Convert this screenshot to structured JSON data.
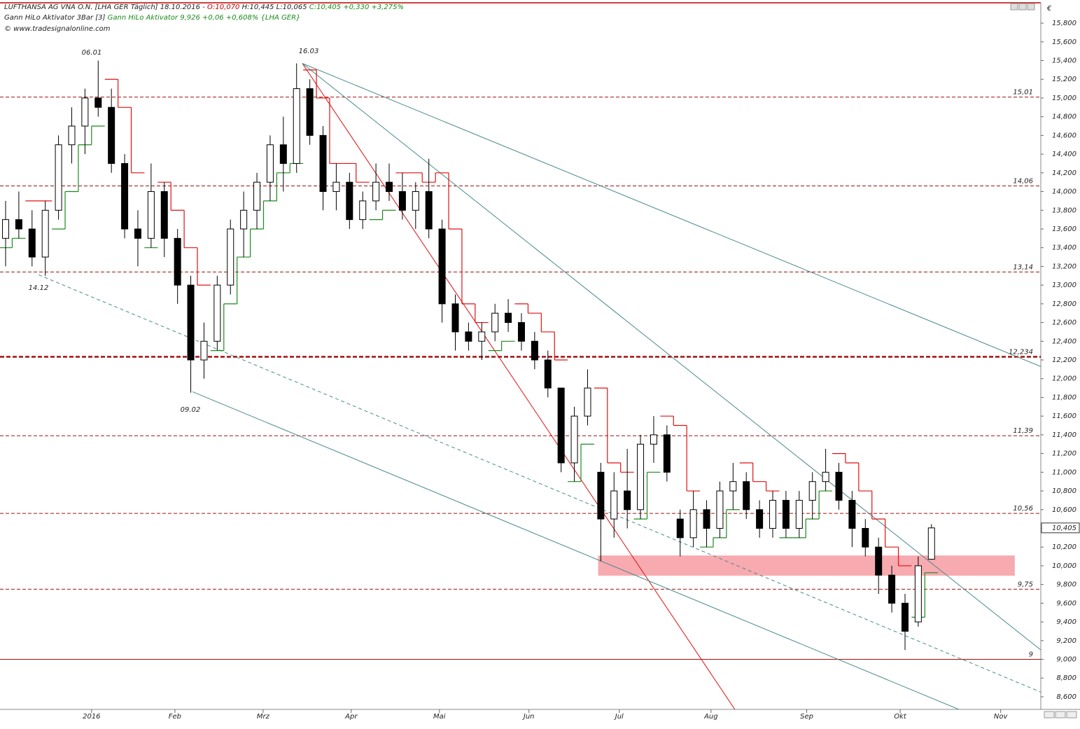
{
  "chart_data": {
    "type": "candlestick",
    "title": "LUFTHANSA AG VNA O.N. [LHA GER  Täglich] 18.10.2016 -",
    "open_text": "O:10,070",
    "hl_text": "H:10,445 L:10,065",
    "change_text": "C:10,405 +0,330 +3,275%",
    "indicator1": "Gann HiLo Aktivator 3Bar [3]",
    "indicator2": "Gann HiLo Aktivator 9,926 +0,06 +0,608% {LHA GER}",
    "copyright": "© www.tradesignalonline.com",
    "unit": "€",
    "x": [
      0,
      3,
      6,
      9,
      12,
      15,
      18,
      21,
      24,
      27,
      30,
      33,
      36,
      39,
      42,
      45,
      48,
      51,
      54,
      57,
      60,
      63,
      66,
      69,
      72,
      75,
      78,
      81,
      84,
      87,
      90,
      93,
      96,
      99,
      102,
      105,
      108,
      111,
      114,
      117,
      120,
      123,
      126,
      129,
      132,
      135,
      138,
      141,
      144,
      147,
      150,
      153,
      156,
      159,
      162,
      165,
      168,
      171,
      174,
      177,
      180,
      183,
      186,
      189,
      192,
      195,
      198,
      201,
      204,
      207,
      210
    ],
    "open": [
      13.5,
      13.7,
      13.6,
      13.3,
      13.8,
      14.5,
      14.7,
      15.0,
      14.9,
      14.3,
      13.6,
      13.5,
      14.0,
      13.5,
      13.0,
      12.2,
      12.4,
      13.0,
      13.6,
      13.8,
      14.1,
      14.5,
      14.3,
      15.1,
      14.6,
      14.0,
      14.1,
      13.7,
      13.9,
      14.1,
      14.0,
      13.8,
      14.0,
      13.6,
      12.8,
      12.5,
      12.4,
      12.5,
      12.7,
      12.6,
      12.4,
      12.2,
      11.9,
      11.1,
      11.6,
      11.0,
      10.5,
      10.8,
      10.6,
      11.3,
      11.4,
      10.5,
      10.3,
      10.6,
      10.4,
      10.8,
      10.9,
      10.6,
      10.4,
      10.7,
      10.4,
      10.7,
      10.9,
      11.0,
      10.7,
      10.4,
      10.2,
      9.9,
      9.6,
      9.4,
      10.07
    ],
    "high": [
      13.9,
      14.0,
      13.8,
      13.9,
      14.6,
      14.9,
      15.1,
      15.4,
      15.1,
      14.4,
      13.8,
      14.3,
      14.1,
      13.6,
      13.1,
      12.6,
      13.1,
      13.7,
      14.0,
      14.2,
      14.6,
      14.8,
      15.37,
      15.2,
      14.7,
      14.3,
      14.2,
      14.0,
      14.3,
      14.3,
      14.2,
      14.1,
      14.35,
      13.7,
      12.9,
      12.6,
      12.6,
      12.8,
      12.85,
      12.7,
      12.5,
      12.3,
      11.9,
      11.7,
      12.1,
      11.1,
      11.0,
      11.25,
      11.4,
      11.6,
      11.5,
      10.6,
      10.8,
      10.7,
      10.9,
      11.1,
      11.0,
      10.7,
      10.8,
      10.8,
      10.8,
      11.0,
      11.25,
      11.1,
      10.8,
      10.5,
      10.3,
      10.0,
      9.7,
      10.1,
      10.445
    ],
    "low": [
      13.2,
      13.5,
      13.2,
      13.1,
      13.7,
      14.3,
      14.4,
      14.8,
      14.2,
      13.5,
      13.2,
      13.4,
      13.3,
      12.8,
      11.85,
      12.0,
      12.3,
      12.9,
      13.3,
      13.6,
      13.9,
      14.0,
      14.2,
      14.5,
      13.8,
      13.8,
      13.6,
      13.6,
      13.8,
      13.9,
      13.7,
      13.6,
      13.5,
      12.6,
      12.3,
      12.3,
      12.2,
      12.4,
      12.5,
      12.3,
      12.1,
      11.8,
      11.0,
      10.9,
      11.5,
      10.05,
      10.3,
      10.4,
      10.5,
      11.1,
      10.9,
      10.1,
      10.2,
      10.2,
      10.3,
      10.6,
      10.5,
      10.3,
      10.3,
      10.3,
      10.3,
      10.5,
      10.8,
      10.6,
      10.2,
      10.1,
      9.7,
      9.5,
      9.1,
      9.35,
      10.065
    ],
    "close": [
      13.7,
      13.6,
      13.3,
      13.8,
      14.5,
      14.7,
      15.0,
      14.9,
      14.3,
      13.6,
      13.5,
      14.0,
      13.5,
      13.0,
      12.2,
      12.4,
      13.0,
      13.6,
      13.8,
      14.1,
      14.5,
      14.3,
      15.1,
      14.6,
      14.0,
      14.1,
      13.7,
      13.9,
      14.1,
      14.0,
      13.8,
      14.0,
      13.6,
      12.8,
      12.5,
      12.4,
      12.5,
      12.7,
      12.6,
      12.4,
      12.2,
      11.9,
      11.1,
      11.6,
      11.9,
      10.5,
      10.8,
      10.6,
      11.3,
      11.4,
      11.0,
      10.3,
      10.6,
      10.4,
      10.8,
      10.9,
      10.6,
      10.4,
      10.7,
      10.4,
      10.7,
      10.9,
      11.0,
      10.7,
      10.4,
      10.2,
      9.9,
      9.6,
      9.3,
      10.0,
      10.405
    ],
    "hilo_red": [
      null,
      null,
      13.9,
      13.9,
      null,
      null,
      null,
      null,
      15.2,
      14.9,
      14.2,
      null,
      14.1,
      13.8,
      13.4,
      13.0,
      null,
      null,
      null,
      null,
      null,
      null,
      null,
      15.3,
      15.0,
      14.3,
      14.3,
      14.1,
      null,
      null,
      14.2,
      14.2,
      14.1,
      14.2,
      13.6,
      12.8,
      12.6,
      null,
      null,
      12.8,
      12.7,
      12.5,
      12.2,
      null,
      null,
      11.9,
      11.1,
      11.0,
      null,
      null,
      11.6,
      11.5,
      10.8,
      null,
      null,
      null,
      11.1,
      10.9,
      10.8,
      null,
      null,
      null,
      null,
      11.2,
      11.1,
      10.8,
      10.5,
      10.2,
      10.0,
      null,
      null
    ],
    "hilo_green": [
      13.4,
      13.5,
      null,
      null,
      13.6,
      14.0,
      14.5,
      14.7,
      null,
      null,
      null,
      13.4,
      null,
      null,
      null,
      null,
      12.3,
      12.8,
      13.3,
      13.6,
      13.9,
      14.2,
      14.3,
      null,
      null,
      null,
      null,
      null,
      13.7,
      13.8,
      null,
      null,
      null,
      null,
      null,
      null,
      null,
      12.3,
      12.4,
      null,
      null,
      null,
      null,
      10.9,
      11.3,
      null,
      null,
      null,
      10.5,
      11.0,
      null,
      null,
      null,
      10.2,
      10.3,
      10.6,
      null,
      null,
      null,
      10.3,
      10.3,
      10.5,
      10.8,
      null,
      null,
      null,
      null,
      null,
      null,
      9.45,
      9.926
    ],
    "xlim": [
      -1.27,
      234.8
    ],
    "ylim": [
      8.465,
      16.01
    ],
    "xticks": [
      {
        "value": 19.5,
        "label": "2016"
      },
      {
        "value": 38.4,
        "label": "Feb"
      },
      {
        "value": 58.4,
        "label": "Mrz"
      },
      {
        "value": 78.4,
        "label": "Apr"
      },
      {
        "value": 98.4,
        "label": "Mai"
      },
      {
        "value": 118.7,
        "label": "Jun"
      },
      {
        "value": 139.2,
        "label": "Jul"
      },
      {
        "value": 160,
        "label": "Aug"
      },
      {
        "value": 181.7,
        "label": "Sep"
      },
      {
        "value": 202.9,
        "label": "Okt"
      },
      {
        "value": 225.7,
        "label": "Nov"
      }
    ],
    "yticks": [
      {
        "value": 8.6,
        "label": "8,600"
      },
      {
        "value": 8.8,
        "label": "8,800"
      },
      {
        "value": 9.0,
        "label": "9,000"
      },
      {
        "value": 9.2,
        "label": "9,200"
      },
      {
        "value": 9.4,
        "label": "9,400"
      },
      {
        "value": 9.6,
        "label": "9,600"
      },
      {
        "value": 9.8,
        "label": "9,800"
      },
      {
        "value": 10.0,
        "label": "10,000"
      },
      {
        "value": 10.2,
        "label": "10,200"
      },
      {
        "value": 10.4,
        "label": "10,400"
      },
      {
        "value": 10.6,
        "label": "10,600"
      },
      {
        "value": 10.8,
        "label": "10,800"
      },
      {
        "value": 11.0,
        "label": "11,000"
      },
      {
        "value": 11.2,
        "label": "11,200"
      },
      {
        "value": 11.4,
        "label": "11,400"
      },
      {
        "value": 11.6,
        "label": "11,600"
      },
      {
        "value": 11.8,
        "label": "11,800"
      },
      {
        "value": 12.0,
        "label": "12,000"
      },
      {
        "value": 12.2,
        "label": "12,200"
      },
      {
        "value": 12.4,
        "label": "12,400"
      },
      {
        "value": 12.6,
        "label": "12,600"
      },
      {
        "value": 12.8,
        "label": "12,800"
      },
      {
        "value": 13.0,
        "label": "13,000"
      },
      {
        "value": 13.2,
        "label": "13,200"
      },
      {
        "value": 13.4,
        "label": "13,400"
      },
      {
        "value": 13.6,
        "label": "13,600"
      },
      {
        "value": 13.8,
        "label": "13,800"
      },
      {
        "value": 14.0,
        "label": "14,000"
      },
      {
        "value": 14.2,
        "label": "14,200"
      },
      {
        "value": 14.4,
        "label": "14,400"
      },
      {
        "value": 14.6,
        "label": "14,600"
      },
      {
        "value": 14.8,
        "label": "14,800"
      },
      {
        "value": 15.0,
        "label": "15,000"
      },
      {
        "value": 15.2,
        "label": "15,200"
      },
      {
        "value": 15.4,
        "label": "15,400"
      },
      {
        "value": 15.6,
        "label": "15,600"
      },
      {
        "value": 15.8,
        "label": "15,800"
      }
    ],
    "levels": [
      {
        "value": 15.01,
        "label": "15,01"
      },
      {
        "value": 14.06,
        "label": "14,06"
      },
      {
        "value": 13.14,
        "label": "13,14"
      },
      {
        "value": 12.234,
        "label": "12,234"
      },
      {
        "value": 11.39,
        "label": "11,39"
      },
      {
        "value": 10.56,
        "label": "10,56"
      },
      {
        "value": 9.75,
        "label": "9,75"
      },
      {
        "value": 9,
        "label": "9"
      }
    ],
    "level_styles": [
      "dashed",
      "dashed",
      "dashed",
      "bold",
      "dashed",
      "dashed",
      "dashed",
      "solid"
    ],
    "level_color": "#a01010",
    "trendlines": [
      {
        "x": [
          67.3,
          165.4
        ],
        "y": [
          15.37,
          8.465
        ],
        "color": "#e01010",
        "dashed": false
      },
      {
        "x": [
          67.3,
          234.8
        ],
        "y": [
          15.37,
          12.13
        ],
        "color": "#4a8a8a",
        "dashed": false
      },
      {
        "x": [
          67.3,
          234.8
        ],
        "y": [
          15.37,
          9.1
        ],
        "color": "#4a8a8a",
        "dashed": false
      },
      {
        "x": [
          42.4,
          216.2
        ],
        "y": [
          11.86,
          8.465
        ],
        "color": "#4a8a8a",
        "dashed": false
      },
      {
        "x": [
          7.5,
          234.8
        ],
        "y": [
          13.11,
          8.65
        ],
        "color": "#4a8a8a",
        "dashed": true
      }
    ],
    "zone": {
      "x": [
        134.4,
        228.9
      ],
      "y": [
        9.894,
        10.11
      ],
      "color": "#f7aab0"
    },
    "annotations": [
      "06.01",
      "16.03",
      "14.12",
      "09.02"
    ],
    "last_price": {
      "value": 10.405,
      "label": "10,405"
    },
    "up_color": "#ffffff",
    "down_color": "#000000",
    "red_color": "#e01010",
    "green_color": "#1a8a1a"
  }
}
